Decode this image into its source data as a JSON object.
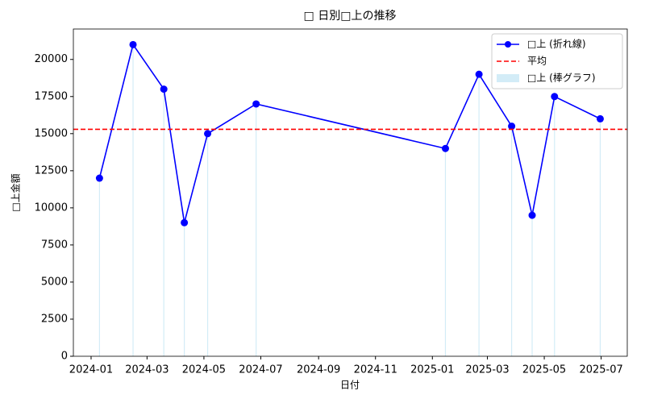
{
  "chart_data": {
    "type": "line",
    "title": "□ 日別□上の推移",
    "xlabel": "日付",
    "ylabel": "□上金額",
    "x": [
      "2024-01-10",
      "2024-02-15",
      "2024-03-19",
      "2024-04-10",
      "2024-05-05",
      "2024-06-26",
      "2025-01-15",
      "2025-02-20",
      "2025-03-27",
      "2025-04-18",
      "2025-05-12",
      "2025-06-30"
    ],
    "series": [
      {
        "name": "□上 (折れ線)",
        "color": "#0000ff",
        "type": "line",
        "values": [
          12000,
          21000,
          18000,
          9000,
          15000,
          17000,
          14000,
          19000,
          15500,
          9500,
          17500,
          16000
        ]
      },
      {
        "name": "□上 (棒グラフ)",
        "color": "#d3ecf7",
        "type": "bar",
        "values": [
          12000,
          21000,
          18000,
          9000,
          15000,
          17000,
          14000,
          19000,
          15500,
          9500,
          17500,
          16000
        ]
      }
    ],
    "mean_line": {
      "name": "平均",
      "color": "#ff0000",
      "value": 15291.67
    },
    "xlim": [
      "2023-12-13",
      "2025-07-29"
    ],
    "xticks": [
      "2024-01",
      "2024-03",
      "2024-05",
      "2024-07",
      "2024-09",
      "2024-11",
      "2025-01",
      "2025-03",
      "2025-05",
      "2025-07"
    ],
    "ylim": [
      0,
      22050
    ],
    "yticks": [
      0,
      2500,
      5000,
      7500,
      10000,
      12500,
      15000,
      17500,
      20000
    ],
    "legend": "upper right"
  }
}
